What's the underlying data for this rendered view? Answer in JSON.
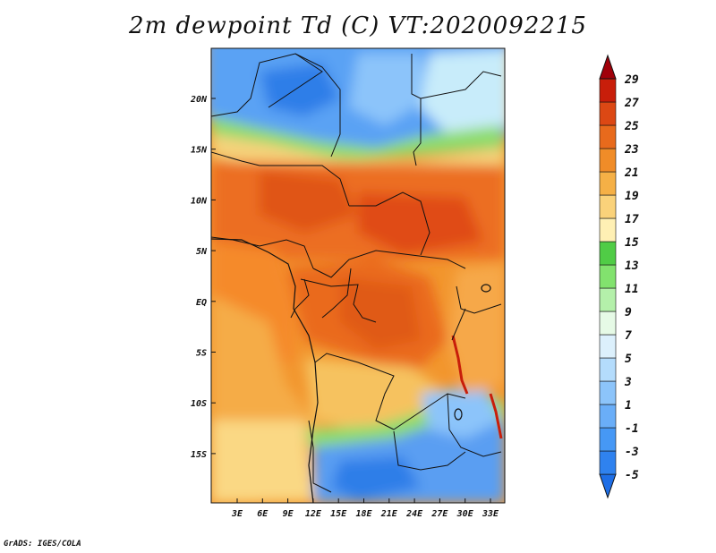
{
  "title": "2m dewpoint Td (C) VT:2020092215",
  "credit": "GrADS: IGES/COLA",
  "map": {
    "lat_labels": [
      "20N",
      "15N",
      "10N",
      "5N",
      "EQ",
      "5S",
      "10S",
      "15S"
    ],
    "lon_labels": [
      "3E",
      "6E",
      "9E",
      "12E",
      "15E",
      "18E",
      "21E",
      "24E",
      "27E",
      "30E",
      "33E"
    ]
  },
  "colorbar": {
    "levels": [
      "-5",
      "-3",
      "-1",
      "1",
      "3",
      "5",
      "7",
      "9",
      "11",
      "13",
      "15",
      "17",
      "19",
      "21",
      "23",
      "25",
      "27",
      "29"
    ],
    "colors": [
      "#1e6ee6",
      "#2f82ef",
      "#4698f5",
      "#6aaef8",
      "#8cc4fa",
      "#b4dcfc",
      "#dcf0fc",
      "#e6fae6",
      "#b4f0aa",
      "#82e26e",
      "#50cc46",
      "#fff0b4",
      "#fad27a",
      "#f5b046",
      "#f08c28",
      "#e86a1c",
      "#dc4814",
      "#c81e0a",
      "#a0000a"
    ]
  }
}
